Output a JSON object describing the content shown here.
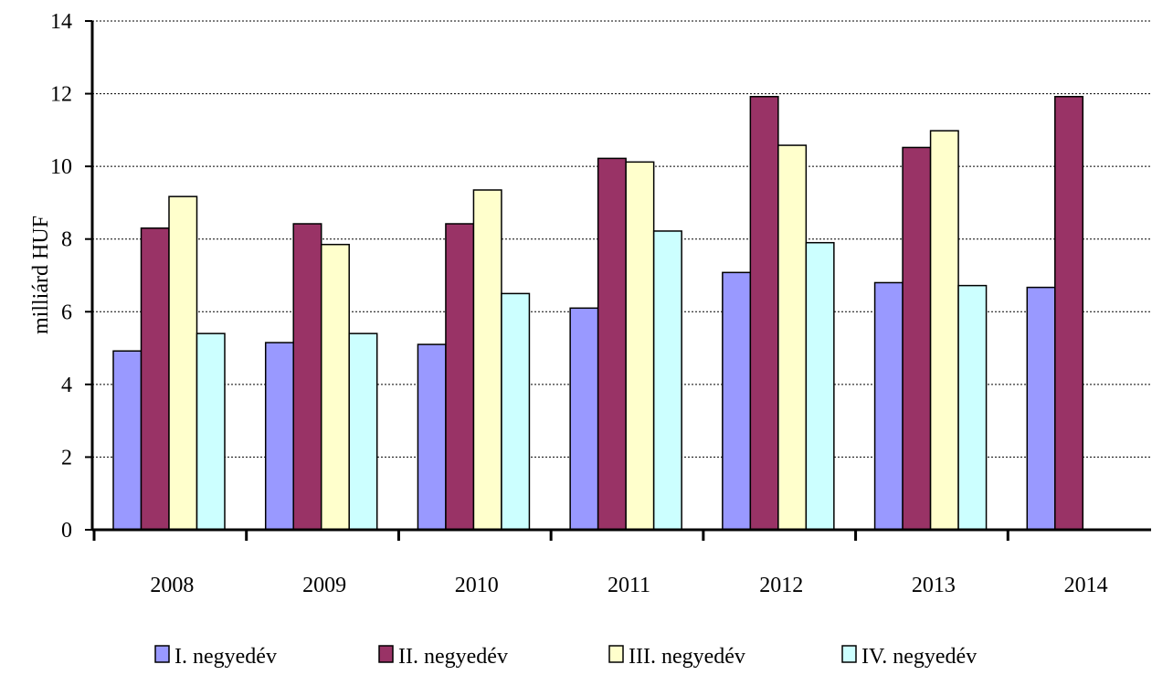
{
  "chart_data": {
    "type": "bar",
    "title": "",
    "xlabel": "",
    "ylabel": "milliárd HUF",
    "ylim": [
      0,
      14
    ],
    "yticks": [
      "0",
      "2",
      "4",
      "6",
      "8",
      "10",
      "12",
      "14"
    ],
    "grid": true,
    "legend_position": "bottom",
    "categories": [
      "2008",
      "2009",
      "2010",
      "2011",
      "2012",
      "2013",
      "2014"
    ],
    "series": [
      {
        "name": "I. negyedév",
        "color": "#9999ff",
        "values": [
          4.92,
          5.15,
          5.1,
          6.1,
          7.08,
          6.8,
          6.67
        ]
      },
      {
        "name": "II. negyedév",
        "color": "#993366",
        "values": [
          8.3,
          8.42,
          8.42,
          10.22,
          11.92,
          10.52,
          11.92
        ]
      },
      {
        "name": "III. negyedév",
        "color": "#ffffcc",
        "values": [
          9.17,
          7.85,
          9.35,
          10.12,
          10.58,
          10.98,
          null
        ]
      },
      {
        "name": "IV. negyedév",
        "color": "#ccffff",
        "values": [
          5.4,
          5.4,
          6.5,
          8.22,
          7.9,
          6.72,
          null
        ]
      }
    ]
  }
}
